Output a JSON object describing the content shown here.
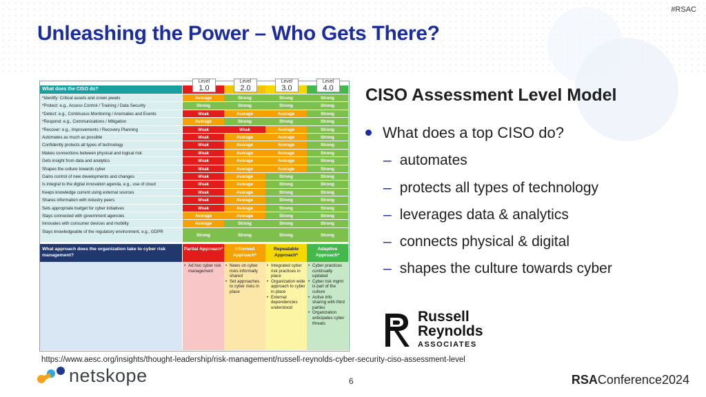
{
  "header": {
    "tag": "#RSAC",
    "title": "Unleashing the Power – Who Gets There?"
  },
  "table": {
    "question1": "What does the CISO do?",
    "levels": [
      {
        "top": "Level",
        "num": "1.0"
      },
      {
        "top": "Level",
        "num": "2.0"
      },
      {
        "top": "Level",
        "num": "3.0"
      },
      {
        "top": "Level",
        "num": "4.0"
      }
    ],
    "rows": [
      {
        "label": "*Identify: Critical assets and crown jewels",
        "cells": [
          "Average",
          "Strong",
          "Strong",
          "Strong"
        ]
      },
      {
        "label": "*Protect: e.g., Access Control / Training / Data Security",
        "cells": [
          "Strong",
          "Strong",
          "Strong",
          "Strong"
        ]
      },
      {
        "label": "*Detect: e.g., Continuous Monitoring / Anomalies and Events",
        "cells": [
          "Weak",
          "Average",
          "Average",
          "Strong"
        ]
      },
      {
        "label": "*Respond: e.g., Communications / Mitigation",
        "cells": [
          "Average",
          "Strong",
          "Strong",
          "Strong"
        ]
      },
      {
        "label": "*Recover: e.g., Improvements / Recovery Planning",
        "cells": [
          "Weak",
          "Weak",
          "Average",
          "Strong"
        ]
      },
      {
        "label": "Automates as much as possible",
        "cells": [
          "Weak",
          "Average",
          "Average",
          "Strong"
        ]
      },
      {
        "label": "Confidently protects all types of technology",
        "cells": [
          "Weak",
          "Average",
          "Average",
          "Strong"
        ]
      },
      {
        "label": "Makes connections between physical and logical risk",
        "cells": [
          "Weak",
          "Average",
          "Average",
          "Strong"
        ]
      },
      {
        "label": "Gets insight from data and analytics",
        "cells": [
          "Weak",
          "Average",
          "Average",
          "Strong"
        ]
      },
      {
        "label": "Shapes the culture towards cyber",
        "cells": [
          "Weak",
          "Average",
          "Average",
          "Strong"
        ]
      },
      {
        "label": "Gains control of new developments and changes",
        "cells": [
          "Weak",
          "Average",
          "Strong",
          "Strong"
        ]
      },
      {
        "label": "Is integral to the digital innovation agenda, e.g., use of cloud",
        "cells": [
          "Weak",
          "Average",
          "Strong",
          "Strong"
        ]
      },
      {
        "label": "Keeps knowledge current using external sources",
        "cells": [
          "Weak",
          "Average",
          "Strong",
          "Strong"
        ]
      },
      {
        "label": "Shares information with industry peers",
        "cells": [
          "Weak",
          "Average",
          "Strong",
          "Strong"
        ]
      },
      {
        "label": "Sets appropriate budget for cyber initiatives",
        "cells": [
          "Weak",
          "Average",
          "Strong",
          "Strong"
        ]
      },
      {
        "label": "Stays connected with government agencies",
        "cells": [
          "Average",
          "Average",
          "Strong",
          "Strong"
        ]
      },
      {
        "label": "Innovates with consumer devices and mobility",
        "cells": [
          "Average",
          "Strong",
          "Strong",
          "Strong"
        ]
      },
      {
        "label": "Stays knowledgeable of the regulatory environment, e.g., GDPR",
        "cells": [
          "Strong",
          "Strong",
          "Strong",
          "Strong"
        ]
      }
    ],
    "question2": "What approach does the organization take to cyber risk management?",
    "approaches": [
      {
        "title": "Partial Approach*",
        "items": [
          "Ad hoc cyber risk management"
        ]
      },
      {
        "title": "Informed Approach*",
        "items": [
          "News on cyber risks informally shared",
          "Set approaches to cyber risks in place"
        ]
      },
      {
        "title": "Repeatable Approach*",
        "items": [
          "Integrated cyber risk practices in place",
          "Organization wide approach to cyber in place",
          "External dependencies understood"
        ]
      },
      {
        "title": "Adaptive Approach*",
        "items": [
          "Cyber practices continually updated",
          "Cyber risk mgmt is part of the culture",
          "Active info sharing with third parties",
          "Organization anticipates cyber threats"
        ]
      }
    ]
  },
  "colors": {
    "Weak": "#e21b1b",
    "Average": "#f5a100",
    "Strong": "#7dc14c",
    "title": "#1b2d9e"
  },
  "content": {
    "subheading": "CISO Assessment Level Model",
    "bullet": "What does a top CISO do?",
    "subitems": [
      "automates",
      "protects all types of technology",
      "leverages data & analytics",
      "connects physical & digital",
      "shapes the culture towards cyber"
    ]
  },
  "logo": {
    "name1": "Russell",
    "name2": "Reynolds",
    "assoc": "ASSOCIATES"
  },
  "footer": {
    "url": "https://www.aesc.org/insights/thought-leadership/risk-management/russell-reynolds-cyber-security-ciso-assessment-level",
    "page": "6",
    "brand": "netskope",
    "rsa_bold": "RSA",
    "rsa_rest": "Conference2024"
  }
}
